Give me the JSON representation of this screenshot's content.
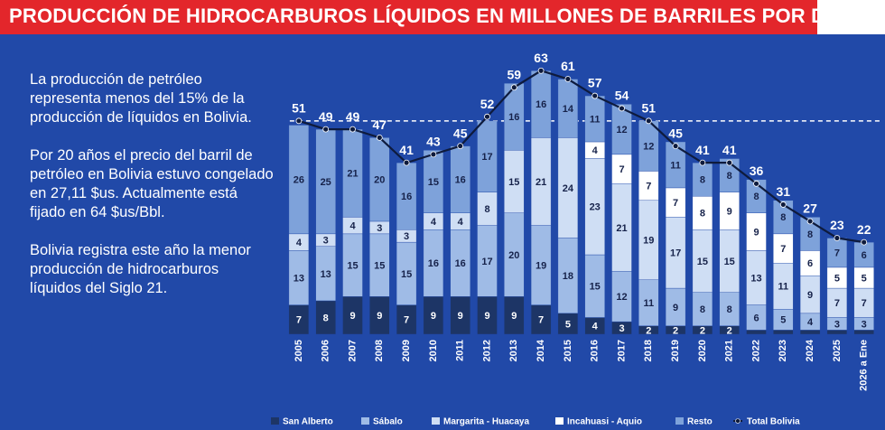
{
  "chart_data": {
    "type": "stacked-bar-line",
    "title": "PRODUCCIÓN DE HIDROCARBUROS LÍQUIDOS EN MILLONES DE BARRILES POR DÍA",
    "notes": [
      "La producción de  petróleo representa menos del 15% de la producción de líquidos en Bolivia.",
      "Por 20 años el precio del barril de petróleo en Bolivia estuvo congelado en 27,11 $us. Actualmente está fijado en 64 $us/Bbl.",
      "Bolivia registra este año la menor producción de hidrocarburos líquidos del Siglo 21."
    ],
    "categories": [
      "2005",
      "2006",
      "2007",
      "2008",
      "2009",
      "2010",
      "2011",
      "2012",
      "2013",
      "2014",
      "2015",
      "2016",
      "2017",
      "2018",
      "2019",
      "2020",
      "2021",
      "2022",
      "2023",
      "2024",
      "2025",
      "2026 a Ene"
    ],
    "series": [
      {
        "name": "San Alberto",
        "color": "#1d3566",
        "values": [
          7,
          8,
          9,
          9,
          7,
          9,
          9,
          9,
          9,
          7,
          5,
          4,
          3,
          2,
          2,
          2,
          2,
          1,
          1,
          1,
          1,
          1
        ]
      },
      {
        "name": "Sábalo",
        "color": "#9fbbe6",
        "values": [
          13,
          13,
          15,
          15,
          15,
          16,
          16,
          17,
          20,
          19,
          18,
          15,
          12,
          11,
          9,
          8,
          8,
          6,
          5,
          4,
          3,
          3
        ]
      },
      {
        "name": "Margarita - Huacaya",
        "color": "#cfdef4",
        "values": [
          4,
          3,
          4,
          3,
          3,
          4,
          4,
          8,
          15,
          21,
          24,
          23,
          21,
          19,
          17,
          15,
          15,
          13,
          11,
          9,
          7,
          7
        ]
      },
      {
        "name": "Incahuasi - Aquio",
        "color": "#ffffff",
        "values": [
          null,
          null,
          null,
          null,
          null,
          null,
          null,
          null,
          null,
          null,
          null,
          4,
          7,
          7,
          7,
          8,
          9,
          9,
          7,
          6,
          5,
          5
        ]
      },
      {
        "name": "Resto",
        "color": "#7ea2da",
        "values": [
          26,
          25,
          21,
          20,
          16,
          15,
          16,
          17,
          16,
          16,
          14,
          11,
          12,
          12,
          11,
          8,
          8,
          8,
          8,
          8,
          7,
          6
        ]
      }
    ],
    "total": {
      "name": "Total Bolivia",
      "color": "#0e1b3d",
      "values": [
        51,
        49,
        49,
        47,
        41,
        43,
        45,
        52,
        59,
        63,
        61,
        57,
        54,
        51,
        45,
        41,
        41,
        36,
        31,
        27,
        23,
        22
      ]
    },
    "reference_line": 51,
    "ylim": [
      0,
      65
    ]
  }
}
